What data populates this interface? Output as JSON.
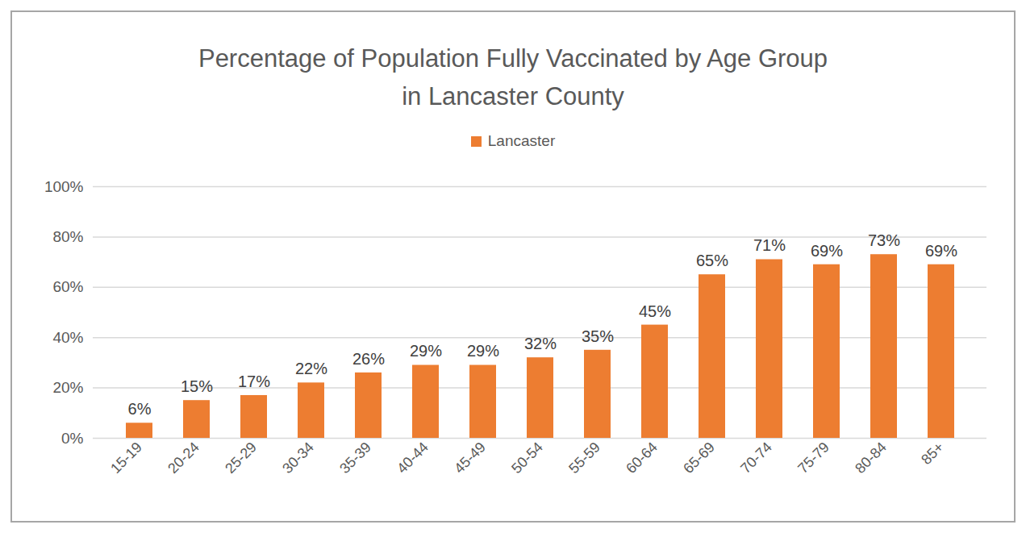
{
  "chart_data": {
    "type": "bar",
    "title": [
      "Percentage of Population Fully Vaccinated by Age Group",
      "in Lancaster County"
    ],
    "categories": [
      "15-19",
      "20-24",
      "25-29",
      "30-34",
      "35-39",
      "40-44",
      "45-49",
      "50-54",
      "55-59",
      "60-64",
      "65-69",
      "70-74",
      "75-79",
      "80-84",
      "85+"
    ],
    "series": [
      {
        "name": "Lancaster",
        "color": "#ed7d31",
        "values": [
          6,
          15,
          17,
          22,
          26,
          29,
          29,
          32,
          35,
          45,
          65,
          71,
          69,
          73,
          69
        ],
        "value_labels": [
          "6%",
          "15%",
          "17%",
          "22%",
          "26%",
          "29%",
          "29%",
          "32%",
          "35%",
          "45%",
          "65%",
          "71%",
          "69%",
          "73%",
          "69%"
        ]
      }
    ],
    "ylim": [
      0,
      100
    ],
    "yticks": [
      {
        "value": 0,
        "label": "0%"
      },
      {
        "value": 20,
        "label": "20%"
      },
      {
        "value": 40,
        "label": "40%"
      },
      {
        "value": 60,
        "label": "60%"
      },
      {
        "value": 80,
        "label": "80%"
      },
      {
        "value": 100,
        "label": "100%"
      }
    ],
    "grid": true,
    "legend": "top",
    "data_labels": true
  }
}
